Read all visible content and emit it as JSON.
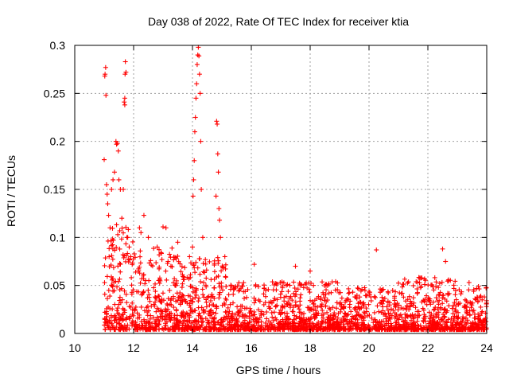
{
  "colors": {
    "points": "#ff0000",
    "axes": "#000000",
    "grid": "#a0a0a0",
    "background": "#ffffff"
  },
  "chart_data": {
    "type": "scatter",
    "title": "Day 038 of 2022, Rate Of TEC Index for receiver ktia",
    "xlabel": "GPS time / hours",
    "ylabel": "ROTI / TECUs",
    "xlim": [
      10,
      24
    ],
    "ylim": [
      0,
      0.3
    ],
    "xticks": [
      10,
      12,
      14,
      16,
      18,
      20,
      22,
      24
    ],
    "yticks": [
      0,
      0.05,
      0.1,
      0.15,
      0.2,
      0.25,
      0.3
    ],
    "ytick_labels": [
      "0",
      "0.05",
      "0.1",
      "0.15",
      "0.2",
      "0.25",
      "0.3"
    ],
    "grid": true,
    "marker": "+",
    "series": [
      {
        "name": "ROTI",
        "points": [
          [
            11.0,
            0.181
          ],
          [
            11.02,
            0.268
          ],
          [
            11.03,
            0.27
          ],
          [
            11.05,
            0.277
          ],
          [
            11.06,
            0.248
          ],
          [
            11.08,
            0.155
          ],
          [
            11.1,
            0.145
          ],
          [
            11.12,
            0.135
          ],
          [
            11.15,
            0.123
          ],
          [
            11.2,
            0.11
          ],
          [
            11.25,
            0.15
          ],
          [
            11.3,
            0.16
          ],
          [
            11.35,
            0.168
          ],
          [
            11.4,
            0.2
          ],
          [
            11.42,
            0.197
          ],
          [
            11.45,
            0.198
          ],
          [
            11.48,
            0.19
          ],
          [
            11.5,
            0.16
          ],
          [
            11.55,
            0.15
          ],
          [
            11.6,
            0.12
          ],
          [
            11.65,
            0.15
          ],
          [
            11.68,
            0.241
          ],
          [
            11.7,
            0.245
          ],
          [
            11.7,
            0.238
          ],
          [
            11.71,
            0.27
          ],
          [
            11.72,
            0.283
          ],
          [
            11.74,
            0.272
          ],
          [
            11.8,
            0.1
          ],
          [
            11.85,
            0.09
          ],
          [
            11.9,
            0.08
          ],
          [
            12.2,
            0.11
          ],
          [
            12.25,
            0.105
          ],
          [
            12.35,
            0.123
          ],
          [
            12.5,
            0.1
          ],
          [
            12.8,
            0.09
          ],
          [
            13.0,
            0.111
          ],
          [
            13.1,
            0.11
          ],
          [
            13.5,
            0.095
          ],
          [
            13.9,
            0.08
          ],
          [
            14.0,
            0.09
          ],
          [
            14.02,
            0.143
          ],
          [
            14.04,
            0.16
          ],
          [
            14.06,
            0.18
          ],
          [
            14.08,
            0.21
          ],
          [
            14.1,
            0.225
          ],
          [
            14.12,
            0.245
          ],
          [
            14.14,
            0.26
          ],
          [
            14.16,
            0.28
          ],
          [
            14.18,
            0.29
          ],
          [
            14.2,
            0.298
          ],
          [
            14.22,
            0.289
          ],
          [
            14.24,
            0.27
          ],
          [
            14.26,
            0.25
          ],
          [
            14.28,
            0.2
          ],
          [
            14.3,
            0.15
          ],
          [
            14.35,
            0.1
          ],
          [
            14.8,
            0.143
          ],
          [
            14.82,
            0.221
          ],
          [
            14.84,
            0.218
          ],
          [
            14.86,
            0.187
          ],
          [
            14.88,
            0.168
          ],
          [
            14.9,
            0.13
          ],
          [
            14.92,
            0.118
          ],
          [
            14.95,
            0.1
          ],
          [
            15.1,
            0.08
          ],
          [
            16.1,
            0.072
          ],
          [
            17.5,
            0.07
          ],
          [
            18.0,
            0.065
          ],
          [
            20.25,
            0.087
          ],
          [
            22.5,
            0.088
          ],
          [
            22.6,
            0.075
          ],
          [
            23.4,
            0.053
          ]
        ]
      }
    ]
  }
}
